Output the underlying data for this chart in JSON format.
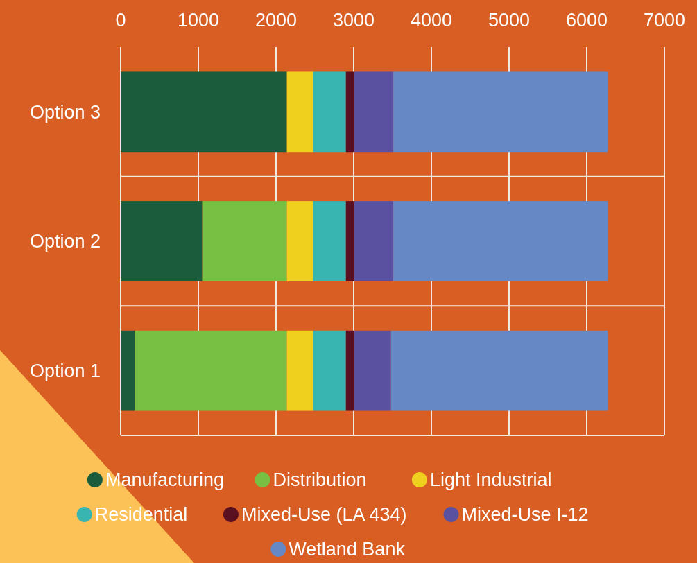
{
  "chart_data": {
    "type": "bar",
    "orientation": "horizontal",
    "stacked": true,
    "categories": [
      "Option 3",
      "Option 2",
      "Option 1"
    ],
    "series": [
      {
        "name": "Manufacturing",
        "color": "#1a5c3c",
        "values": [
          2140,
          1050,
          180
        ]
      },
      {
        "name": "Distribution",
        "color": "#78c043",
        "values": [
          0,
          1090,
          1960
        ]
      },
      {
        "name": "Light Industrial",
        "color": "#f0d01e",
        "values": [
          340,
          340,
          340
        ]
      },
      {
        "name": "Residential",
        "color": "#38b5b0",
        "values": [
          420,
          420,
          420
        ]
      },
      {
        "name": "Mixed-Use (LA 434)",
        "color": "#5a1020",
        "values": [
          110,
          110,
          110
        ]
      },
      {
        "name": "Mixed-Use I-12",
        "color": "#5a52a0",
        "values": [
          500,
          500,
          470
        ]
      },
      {
        "name": "Wetland Bank",
        "color": "#6688c4",
        "values": [
          2760,
          2760,
          2790
        ]
      }
    ],
    "xlim": [
      0,
      7000
    ],
    "xticks": [
      0,
      1000,
      2000,
      3000,
      4000,
      5000,
      6000,
      7000
    ],
    "grid": true,
    "legend": "bottom"
  }
}
